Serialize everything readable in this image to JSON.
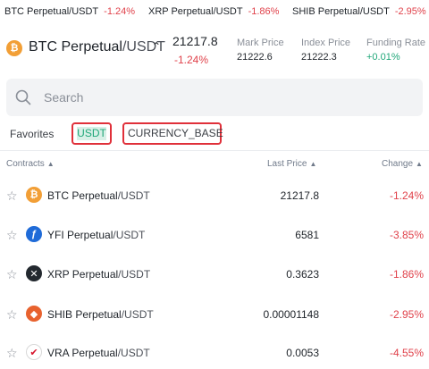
{
  "ticker": [
    {
      "base": "BTC Perpetual",
      "quote": "/USDT",
      "change": "-1.24%"
    },
    {
      "base": "XRP Perpetual",
      "quote": "/USDT",
      "change": "-1.86%"
    },
    {
      "base": "SHIB Perpetual",
      "quote": "/USDT",
      "change": "-2.95%"
    }
  ],
  "header": {
    "base": "BTC Perpetual",
    "quote": "/USDT",
    "price": "21217.8",
    "change": "-1.24%",
    "mark_price_label": "Mark Price",
    "mark_price": "21222.6",
    "index_price_label": "Index Price",
    "index_price": "21222.3",
    "funding_rate_label": "Funding Rate",
    "funding_rate": "+0.01%"
  },
  "search": {
    "placeholder": "Search"
  },
  "tabs": {
    "favorites": "Favorites",
    "usdt": "USDT",
    "currency_base": "CURRENCY_BASE"
  },
  "columns": {
    "contracts": "Contracts",
    "last_price": "Last Price",
    "change": "Change"
  },
  "rows": [
    {
      "base": "BTC Perpetual",
      "quote": "/USDT",
      "price": "21217.8",
      "change": "-1.24%",
      "icon": "btc-icon",
      "icon_glyph": "₿"
    },
    {
      "base": "YFI Perpetual",
      "quote": "/USDT",
      "price": "6581",
      "change": "-3.85%",
      "icon": "yfi-icon",
      "icon_glyph": "ƒ"
    },
    {
      "base": "XRP Perpetual",
      "quote": "/USDT",
      "price": "0.3623",
      "change": "-1.86%",
      "icon": "xrp-icon",
      "icon_glyph": "✕"
    },
    {
      "base": "SHIB Perpetual",
      "quote": "/USDT",
      "price": "0.00001148",
      "change": "-2.95%",
      "icon": "shib-icon",
      "icon_glyph": "◆"
    },
    {
      "base": "VRA Perpetual",
      "quote": "/USDT",
      "price": "0.0053",
      "change": "-4.55%",
      "icon": "vra-icon",
      "icon_glyph": "✔"
    }
  ],
  "colors": {
    "negative": "#e0424b",
    "positive": "#20a779",
    "highlight_border": "#e0303a"
  }
}
